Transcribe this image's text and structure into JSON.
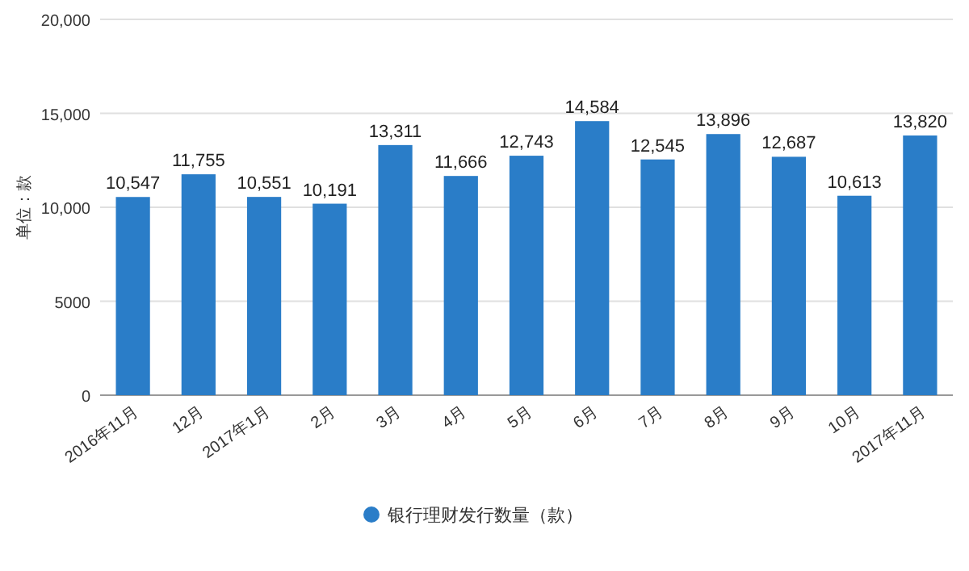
{
  "chart_data": {
    "type": "bar",
    "ylabel": "单位：款",
    "categories": [
      "2016年11月",
      "12月",
      "2017年1月",
      "2月",
      "3月",
      "4月",
      "5月",
      "6月",
      "7月",
      "8月",
      "9月",
      "10月",
      "2017年11月"
    ],
    "series": [
      {
        "name": "银行理财发行数量（款）",
        "color": "#2a7dc8",
        "values": [
          10547,
          11755,
          10551,
          10191,
          13311,
          11666,
          12743,
          14584,
          12545,
          13896,
          12687,
          10613,
          13820
        ],
        "value_labels": [
          "10,547",
          "11,755",
          "10,551",
          "10,191",
          "13,311",
          "11,666",
          "12,743",
          "14,584",
          "12,545",
          "13,896",
          "12,687",
          "10,613",
          "13,820"
        ]
      }
    ],
    "ylim": [
      0,
      20000
    ],
    "yticks": [
      0,
      5000,
      {
        "value": 10000,
        "label": "10,000"
      },
      {
        "value": 15000,
        "label": "15,000"
      },
      {
        "value": 20000,
        "label": "20,000"
      }
    ],
    "grid": "y",
    "legend": "bottom"
  }
}
